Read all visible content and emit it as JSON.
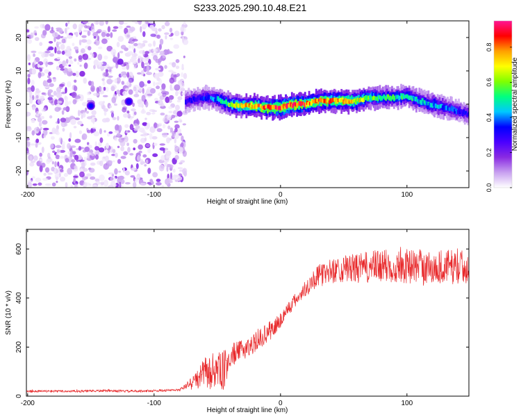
{
  "figure": {
    "title": "S233.2025.290.10.48.E21"
  },
  "colors": {
    "snr_line": "#e8282a",
    "axes": "#000000",
    "background": "#ffffff"
  },
  "chart_data": [
    {
      "type": "heatmap",
      "name": "spectrogram",
      "xlabel": "Height of straight line (km)",
      "ylabel": "Frequency (Hz)",
      "xlim": [
        -201,
        149
      ],
      "ylim": [
        -25,
        25
      ],
      "xticks": [
        -200,
        -100,
        0,
        100
      ],
      "yticks": [
        -20,
        -10,
        0,
        10,
        20
      ],
      "colorbar": {
        "label": "Normalized spectral amplitude",
        "range": [
          0,
          0.95
        ],
        "ticks": [
          0.0,
          0.2,
          0.4,
          0.6,
          0.8
        ],
        "tick_labels": [
          "0.0",
          "0.2",
          "0.4",
          "0.6",
          "0.8"
        ],
        "colormap": [
          "#ffffff",
          "#c8a0f0",
          "#8a2be2",
          "#4b00ff",
          "#0000ff",
          "#00c8ff",
          "#00ff80",
          "#80ff00",
          "#ffff00",
          "#ffa000",
          "#ff0000",
          "#ff1493"
        ]
      },
      "regions": [
        {
          "description_range_km": [
            -201,
            -75
          ],
          "content": "broadband noise",
          "amplitude_range": [
            0.02,
            0.2
          ]
        },
        {
          "description_range_km": [
            -75,
            149
          ],
          "content": "narrow signal band near 0 Hz",
          "amplitude_range": [
            0.2,
            0.9
          ]
        }
      ],
      "signal_track": {
        "x_km": [
          -75,
          -60,
          -50,
          -40,
          -30,
          -20,
          -10,
          0,
          10,
          20,
          30,
          40,
          50,
          60,
          70,
          80,
          90,
          100,
          110,
          120,
          130,
          140,
          149
        ],
        "freq_hz": [
          1,
          2,
          1.5,
          0,
          -0.5,
          -0.5,
          -1,
          -1,
          0,
          0,
          1,
          1,
          1,
          1,
          2,
          2,
          2,
          2.5,
          1,
          0,
          -1,
          -2,
          -3
        ],
        "peak_amplitude": [
          0.3,
          0.35,
          0.45,
          0.6,
          0.7,
          0.8,
          0.85,
          0.9,
          0.9,
          0.85,
          0.8,
          0.8,
          0.75,
          0.7,
          0.6,
          0.55,
          0.5,
          0.5,
          0.45,
          0.45,
          0.4,
          0.35,
          0.3
        ]
      }
    },
    {
      "type": "line",
      "name": "snr",
      "xlabel": "Height of straight line (km)",
      "ylabel": "SNR (10 * v/v)",
      "xlim": [
        -201,
        149
      ],
      "ylim": [
        0,
        680
      ],
      "xticks": [
        -200,
        -100,
        0,
        100
      ],
      "yticks": [
        0,
        200,
        400,
        600
      ],
      "series": [
        {
          "name": "SNR",
          "x": [
            -201,
            -180,
            -160,
            -140,
            -120,
            -100,
            -80,
            -75,
            -70,
            -65,
            -60,
            -55,
            -50,
            -45,
            -40,
            -35,
            -30,
            -25,
            -20,
            -15,
            -10,
            -5,
            0,
            5,
            10,
            15,
            20,
            25,
            30,
            40,
            50,
            60,
            70,
            80,
            90,
            100,
            110,
            120,
            130,
            140,
            149
          ],
          "y": [
            20,
            20,
            20,
            22,
            20,
            22,
            25,
            40,
            60,
            70,
            100,
            90,
            110,
            100,
            160,
            180,
            190,
            200,
            220,
            240,
            260,
            280,
            310,
            350,
            380,
            410,
            440,
            470,
            490,
            510,
            520,
            520,
            525,
            530,
            530,
            530,
            530,
            520,
            530,
            525,
            530
          ],
          "noise_amplitude": [
            5,
            5,
            5,
            5,
            5,
            5,
            5,
            10,
            25,
            40,
            60,
            70,
            70,
            80,
            60,
            40,
            40,
            40,
            40,
            40,
            40,
            40,
            35,
            30,
            30,
            30,
            35,
            40,
            45,
            50,
            55,
            60,
            65,
            70,
            70,
            70,
            70,
            70,
            70,
            70,
            70
          ]
        }
      ]
    }
  ]
}
